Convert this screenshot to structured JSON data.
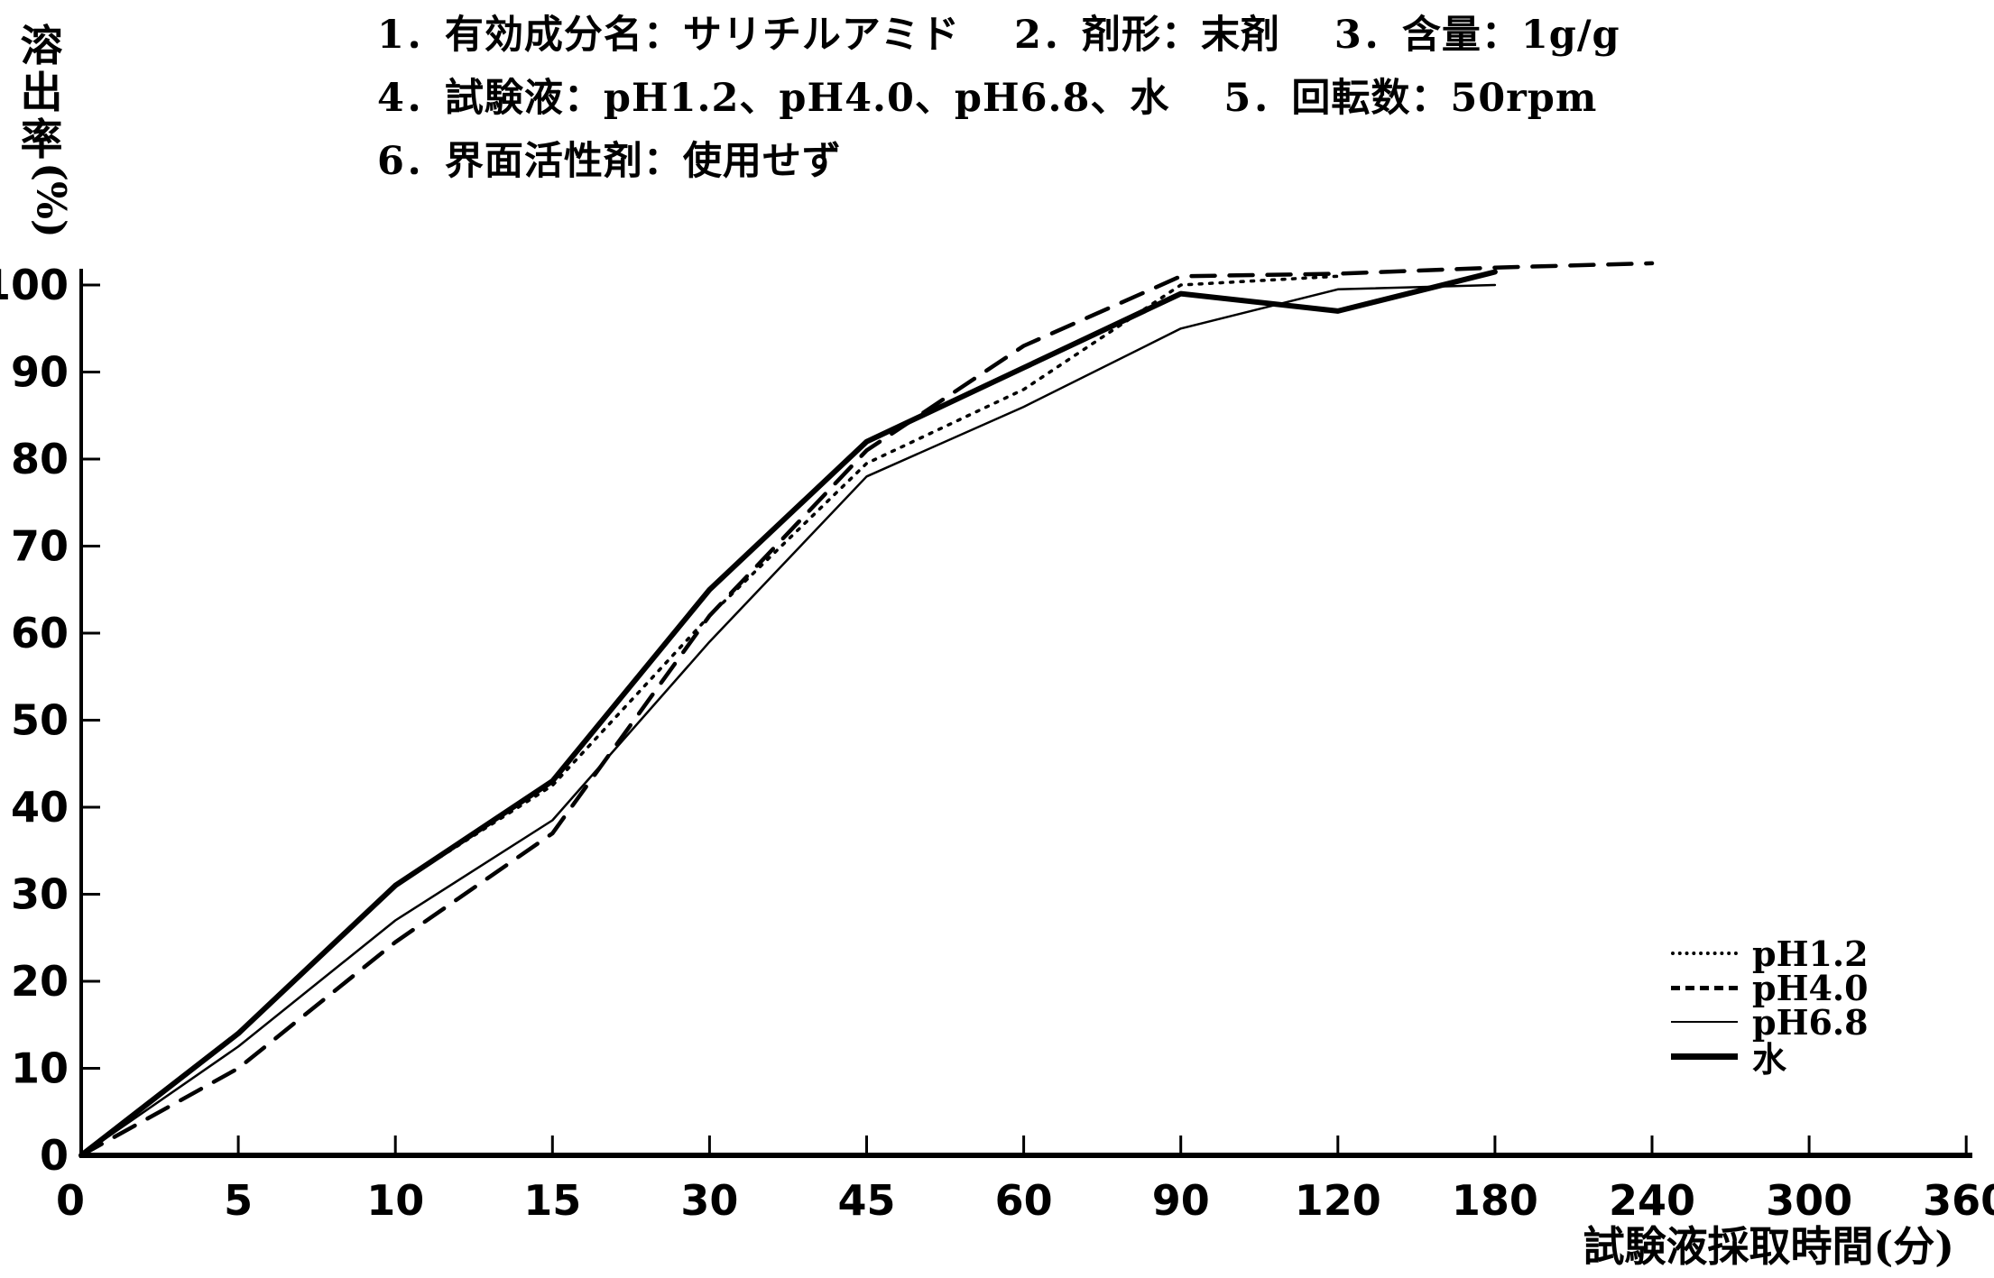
{
  "header": {
    "line1": "1．有効成分名：サリチルアミド　 2．剤形：末剤　 3．含量：1g/g",
    "line2": "4．試験液：pH1.2、pH4.0、pH6.8、水　 5．回転数：50rpm",
    "line3": "6．界面活性剤：使用せず"
  },
  "chart_data": {
    "type": "line",
    "title": "",
    "xlabel": "試験液採取時間(分)",
    "ylabel": "溶出率(%)",
    "x_axis_note": "non-linear time axis: ticks equally spaced",
    "categories": [
      0,
      5,
      10,
      15,
      30,
      45,
      60,
      90,
      120,
      180,
      240,
      300,
      360
    ],
    "y_ticks": [
      0,
      10,
      20,
      30,
      40,
      50,
      60,
      70,
      80,
      90,
      100
    ],
    "ylim": [
      0,
      103
    ],
    "grid": false,
    "legend_position": "lower-right",
    "series": [
      {
        "name": "pH1.2",
        "style": "dotted",
        "values": [
          0,
          14,
          31,
          42.5,
          62,
          79.5,
          88,
          100,
          101,
          null,
          null,
          null,
          null
        ]
      },
      {
        "name": "pH4.0",
        "style": "dashed",
        "values": [
          0,
          10,
          24.5,
          37,
          62,
          81,
          93,
          101,
          101.3,
          102,
          102.5,
          null,
          null
        ]
      },
      {
        "name": "pH6.8",
        "style": "solid-thin",
        "values": [
          0,
          12.5,
          27,
          38.5,
          59,
          78,
          86,
          95,
          99.5,
          100,
          null,
          null,
          null
        ]
      },
      {
        "name": "水",
        "style": "solid-thick",
        "values": [
          0,
          14,
          31,
          43,
          65,
          82,
          90.5,
          99,
          97,
          101.5,
          null,
          null,
          null
        ]
      }
    ]
  },
  "colors": {
    "ink": "#000000",
    "background": "#ffffff"
  }
}
